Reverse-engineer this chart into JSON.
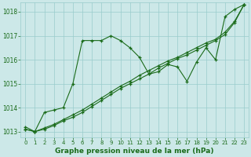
{
  "line1": {
    "x": [
      0,
      1,
      2,
      3,
      4,
      5,
      6,
      7,
      8,
      9,
      10,
      11,
      12,
      13,
      14,
      15,
      16,
      17,
      18,
      19,
      20,
      21,
      22,
      23
    ],
    "y": [
      1013.2,
      1013.0,
      1013.8,
      1013.9,
      1014.0,
      1015.0,
      1016.8,
      1016.8,
      1016.8,
      1017.0,
      1016.8,
      1016.5,
      1016.1,
      1015.4,
      1015.5,
      1015.8,
      1015.7,
      1015.1,
      1015.9,
      1016.5,
      1016.0,
      1017.8,
      1018.1,
      1018.3
    ]
  },
  "line2": {
    "x": [
      0,
      1,
      2,
      3,
      4,
      5,
      6,
      7,
      8,
      9,
      10,
      11,
      12,
      13,
      14,
      15,
      16,
      17,
      18,
      19,
      20,
      21,
      22,
      23
    ],
    "y": [
      1013.1,
      1013.0,
      1013.15,
      1013.3,
      1013.5,
      1013.7,
      1013.9,
      1014.15,
      1014.4,
      1014.65,
      1014.9,
      1015.1,
      1015.35,
      1015.55,
      1015.75,
      1015.95,
      1016.1,
      1016.3,
      1016.5,
      1016.7,
      1016.85,
      1017.15,
      1017.6,
      1018.3
    ]
  },
  "line3": {
    "x": [
      0,
      1,
      2,
      3,
      4,
      5,
      6,
      7,
      8,
      9,
      10,
      11,
      12,
      13,
      14,
      15,
      16,
      17,
      18,
      19,
      20,
      21,
      22,
      23
    ],
    "y": [
      1013.1,
      1013.0,
      1013.1,
      1013.25,
      1013.45,
      1013.6,
      1013.8,
      1014.05,
      1014.3,
      1014.55,
      1014.8,
      1015.0,
      1015.2,
      1015.4,
      1015.65,
      1015.85,
      1016.05,
      1016.2,
      1016.4,
      1016.6,
      1016.8,
      1017.05,
      1017.55,
      1018.3
    ]
  },
  "line_color": "#1a6b1a",
  "bg_color": "#cce8e8",
  "grid_color": "#99cccc",
  "xlabel": "Graphe pression niveau de la mer (hPa)",
  "xlim": [
    -0.5,
    23.5
  ],
  "ylim": [
    1012.75,
    1018.4
  ],
  "yticks": [
    1013,
    1014,
    1015,
    1016,
    1017,
    1018
  ],
  "xticks": [
    0,
    1,
    2,
    3,
    4,
    5,
    6,
    7,
    8,
    9,
    10,
    11,
    12,
    13,
    14,
    15,
    16,
    17,
    18,
    19,
    20,
    21,
    22,
    23
  ]
}
